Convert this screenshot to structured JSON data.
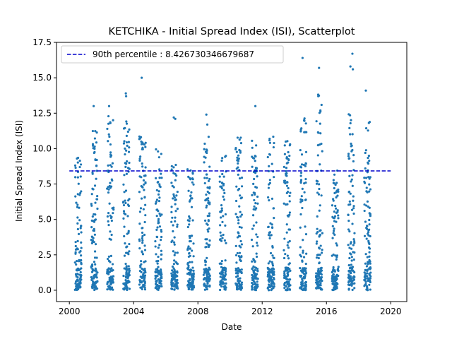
{
  "chart_data": {
    "type": "scatter",
    "title": "KETCHIKA - Initial Spread Index (ISI), Scatterplot",
    "xlabel": "Date",
    "ylabel": "Initial Spread Index (ISI)",
    "xlim": [
      1999.2,
      2021.0
    ],
    "ylim": [
      -0.8,
      17.5
    ],
    "xticks": [
      2000,
      2004,
      2008,
      2012,
      2016,
      2020
    ],
    "xtick_labels": [
      "2000",
      "2004",
      "2008",
      "2012",
      "2016",
      "2020"
    ],
    "yticks": [
      0.0,
      2.5,
      5.0,
      7.5,
      10.0,
      12.5,
      15.0,
      17.5
    ],
    "ytick_labels": [
      "0.0",
      "2.5",
      "5.0",
      "7.5",
      "10.0",
      "12.5",
      "15.0",
      "17.5"
    ],
    "point_color": "#1f77b4",
    "reference_line": {
      "label": "90th percentile : 8.426730346679687",
      "value": 8.426730346679687,
      "color": "#0000cc",
      "style": "dashed",
      "x_range": [
        2000,
        2020
      ]
    },
    "legend_position": "upper-left",
    "series": [
      {
        "seasons": [
          {
            "start": 2000.35,
            "end": 2000.75,
            "max": 9.4,
            "extremes": []
          },
          {
            "start": 2001.35,
            "end": 2001.75,
            "max": 11.6,
            "extremes": [
              13.0
            ]
          },
          {
            "start": 2002.35,
            "end": 2002.75,
            "max": 12.3,
            "extremes": [
              13.0,
              11.0
            ]
          },
          {
            "start": 2003.35,
            "end": 2003.75,
            "max": 12.0,
            "extremes": [
              13.9,
              13.7
            ]
          },
          {
            "start": 2004.35,
            "end": 2004.75,
            "max": 10.9,
            "extremes": [
              15.0
            ]
          },
          {
            "start": 2005.35,
            "end": 2005.75,
            "max": 10.0,
            "extremes": [
              9.8
            ]
          },
          {
            "start": 2006.35,
            "end": 2006.75,
            "max": 9.0,
            "extremes": [
              12.1,
              12.2
            ]
          },
          {
            "start": 2007.35,
            "end": 2007.75,
            "max": 9.1,
            "extremes": []
          },
          {
            "start": 2008.35,
            "end": 2008.75,
            "max": 10.9,
            "extremes": [
              12.4,
              11.7
            ]
          },
          {
            "start": 2009.35,
            "end": 2009.75,
            "max": 9.5,
            "extremes": []
          },
          {
            "start": 2010.35,
            "end": 2010.75,
            "max": 10.8,
            "extremes": []
          },
          {
            "start": 2011.35,
            "end": 2011.75,
            "max": 10.7,
            "extremes": [
              13.0
            ]
          },
          {
            "start": 2012.35,
            "end": 2012.75,
            "max": 10.9,
            "extremes": [
              9.6
            ]
          },
          {
            "start": 2013.35,
            "end": 2013.75,
            "max": 10.7,
            "extremes": []
          },
          {
            "start": 2014.35,
            "end": 2014.75,
            "max": 12.2,
            "extremes": [
              16.4
            ]
          },
          {
            "start": 2015.35,
            "end": 2015.75,
            "max": 14.1,
            "extremes": [
              15.7,
              13.7
            ]
          },
          {
            "start": 2016.35,
            "end": 2016.75,
            "max": 8.6,
            "extremes": []
          },
          {
            "start": 2017.35,
            "end": 2017.75,
            "max": 12.6,
            "extremes": [
              16.7,
              15.6,
              15.8,
              9.9
            ]
          },
          {
            "start": 2018.35,
            "end": 2018.75,
            "max": 12.1,
            "extremes": [
              14.1
            ]
          }
        ]
      }
    ]
  }
}
